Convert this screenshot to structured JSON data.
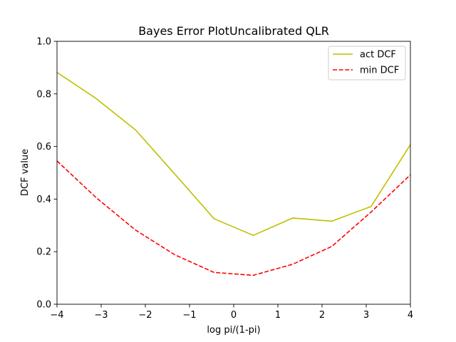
{
  "chart_data": {
    "type": "line",
    "title": "Bayes Error PlotUncalibrated QLR",
    "xlabel": "log pi/(1-pi)",
    "ylabel": "DCF value",
    "xlim": [
      -4,
      4
    ],
    "ylim": [
      0,
      1
    ],
    "xticks": [
      -4,
      -3,
      -2,
      -1,
      0,
      1,
      2,
      3,
      4
    ],
    "yticks": [
      0.0,
      0.2,
      0.4,
      0.6,
      0.8,
      1.0
    ],
    "xtick_labels": [
      "−4",
      "−3",
      "−2",
      "−1",
      "0",
      "1",
      "2",
      "3",
      "4"
    ],
    "ytick_labels": [
      "0.0",
      "0.2",
      "0.4",
      "0.6",
      "0.8",
      "1.0"
    ],
    "x": [
      -4.0,
      -3.111,
      -2.222,
      -1.333,
      -0.444,
      0.444,
      1.333,
      2.222,
      3.111,
      4.0
    ],
    "series": [
      {
        "name": "act DCF",
        "color": "#bfbf00",
        "style": "solid",
        "values": [
          0.882,
          0.782,
          0.663,
          0.495,
          0.325,
          0.262,
          0.328,
          0.316,
          0.372,
          0.607
        ]
      },
      {
        "name": "min DCF",
        "color": "#ff0000",
        "style": "dashed",
        "values": [
          0.545,
          0.405,
          0.282,
          0.188,
          0.121,
          0.11,
          0.152,
          0.22,
          0.351,
          0.492
        ]
      }
    ],
    "legend_position": "top-right",
    "grid": false
  }
}
